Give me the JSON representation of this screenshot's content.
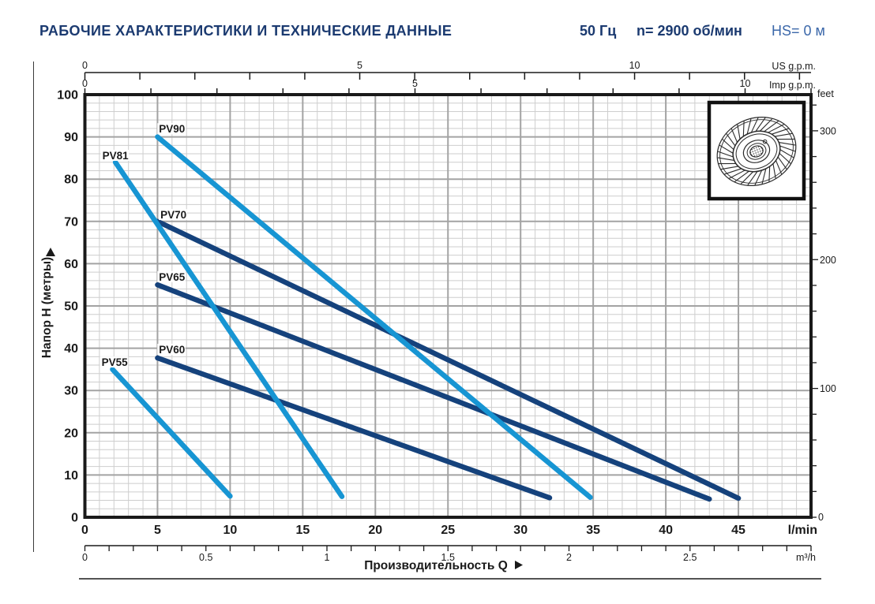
{
  "header": {
    "title": "РАБОЧИЕ ХАРАКТЕРИСТИКИ И ТЕХНИЧЕСКИЕ ДАННЫЕ",
    "frequency": "50 Гц",
    "speed": "n= 2900 об/мин",
    "suction_head": "HS= 0 м"
  },
  "colors": {
    "title_navy": "#1b3a70",
    "hs_blue": "#3c68aa",
    "curve_light_blue": "#1795d3",
    "curve_dark_blue": "#15427c",
    "grid_minor": "#cecece",
    "grid_major": "#a3a3a3",
    "axis_black": "#1a1a1a"
  },
  "icons": {
    "impeller_image": "vortex-impeller-technical-drawing",
    "x_axis_arrow": "right-arrow-icon",
    "y_axis_arrow": "up-arrow-icon"
  },
  "chart_data": {
    "type": "line",
    "title": "",
    "xlabel": "Производительность Q",
    "ylabel": "Напор H (метры)",
    "grid": true,
    "legend_position": "labels-on-curves",
    "x_primary": {
      "unit": "l/min",
      "min": 0,
      "max": 50,
      "tick_labels": [
        0,
        5,
        10,
        15,
        20,
        25,
        30,
        35,
        40,
        45
      ],
      "minor_step": 1
    },
    "x_secondary": {
      "unit": "m³/h",
      "lmin_per_unit": 16.6667,
      "tick_labels": [
        0,
        0.5,
        1,
        1.5,
        2,
        2.5
      ],
      "minor_step": 0.1,
      "minor_max": 3.0
    },
    "x_top_us": {
      "unit": "US g.p.m.",
      "lmin_per_unit": 3.785,
      "tick_labels": [
        0,
        5,
        10
      ],
      "minor_step": 1,
      "minor_max": 13
    },
    "x_top_imp": {
      "unit": "Imp g.p.m.",
      "lmin_per_unit": 4.546,
      "tick_labels": [
        0,
        5,
        10
      ],
      "minor_step": 1,
      "minor_max": 11
    },
    "y_primary": {
      "unit": "м",
      "min": 0,
      "max": 100,
      "tick_step": 10,
      "minor_step": 2
    },
    "y_secondary": {
      "unit": "feet",
      "m_per_unit": 0.3048,
      "tick_labels": [
        100,
        200,
        300
      ],
      "zero_label": "0",
      "minor_step": 20,
      "minor_max": 320
    },
    "series": [
      {
        "name": "PV55",
        "color": "light",
        "points": [
          [
            1.9,
            35
          ],
          [
            10,
            5
          ]
        ],
        "label_at": [
          1.15,
          35.8
        ]
      },
      {
        "name": "PV60",
        "color": "dark",
        "points": [
          [
            5,
            37.7
          ],
          [
            32,
            4.6
          ]
        ],
        "label_at": [
          5.1,
          38.8
        ]
      },
      {
        "name": "PV65",
        "color": "dark",
        "points": [
          [
            5,
            55
          ],
          [
            43,
            4.3
          ]
        ],
        "label_at": [
          5.1,
          56.0
        ]
      },
      {
        "name": "PV70",
        "color": "dark",
        "points": [
          [
            5,
            70
          ],
          [
            45,
            4.5
          ]
        ],
        "label_at": [
          5.2,
          70.7
        ]
      },
      {
        "name": "PV81",
        "color": "light",
        "points": [
          [
            2.1,
            84
          ],
          [
            17.7,
            4.9
          ]
        ],
        "label_at": [
          1.2,
          84.7
        ]
      },
      {
        "name": "PV90",
        "color": "light",
        "points": [
          [
            5,
            90
          ],
          [
            34.8,
            4.7
          ]
        ],
        "label_at": [
          5.1,
          91.0
        ]
      }
    ]
  }
}
